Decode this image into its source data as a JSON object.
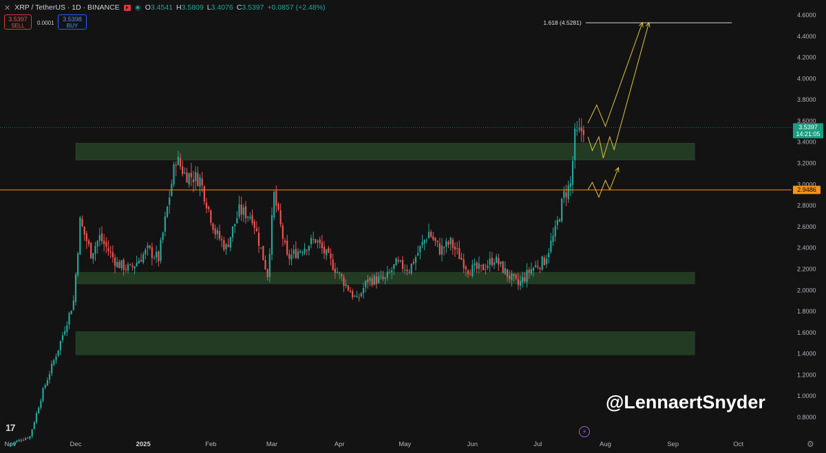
{
  "header": {
    "symbol": "XRP / TetherUS · 1D · BINANCE",
    "o_label": "O",
    "o_value": "3.4541",
    "h_label": "H",
    "h_value": "3.5809",
    "l_label": "L",
    "l_value": "3.4076",
    "c_label": "C",
    "c_value": "3.5397",
    "change": "+0.0857 (+2.48%)"
  },
  "trade": {
    "sell_price": "3.5397",
    "sell_label": "SELL",
    "spread": "0.0001",
    "buy_price": "3.5398",
    "buy_label": "BUY"
  },
  "watermark": "@LennaertSnyder",
  "colors": {
    "up": "#26a69a",
    "down": "#ef5350",
    "zone": "#233b23",
    "orange_line": "#f7931a",
    "projection": "#e4c441",
    "fib_line": "#d9d9d9",
    "price_badge": "#1a9c80"
  },
  "chart_data": {
    "type": "candlestick",
    "symbol": "XRP / TetherUS",
    "timeframe": "1D",
    "y_axis": {
      "ticks": [
        "4.6000",
        "4.4000",
        "4.2000",
        "4.0000",
        "3.8000",
        "3.6000",
        "3.4000",
        "3.2000",
        "3.0000",
        "2.8000",
        "2.6000",
        "2.4000",
        "2.2000",
        "2.0000",
        "1.8000",
        "1.6000",
        "1.4000",
        "1.2000",
        "1.0000",
        "0.8000"
      ],
      "range": [
        0.7,
        4.7
      ]
    },
    "x_axis": {
      "labels": [
        "Nov",
        "Dec",
        "2025",
        "Feb",
        "Mar",
        "Apr",
        "May",
        "Jun",
        "Jul",
        "Aug",
        "Sep",
        "Oct"
      ],
      "label_dates": [
        "2024-11-01",
        "2024-12-01",
        "2025-01-01",
        "2025-02-01",
        "2025-03-01",
        "2025-04-01",
        "2025-05-01",
        "2025-06-01",
        "2025-07-01",
        "2025-08-01",
        "2025-09-01",
        "2025-10-01"
      ]
    },
    "current_price": {
      "value": 3.5397,
      "label": "3.5397",
      "countdown": "14:21:05"
    },
    "horizontal_level": {
      "value": 2.9486,
      "label": "2.9486"
    },
    "fib_level": {
      "value": 4.5281,
      "label": "1.618 (4.5281)"
    },
    "zones": [
      {
        "low": 3.23,
        "high": 3.39,
        "from": "2024-12-01",
        "to": "2025-09-11"
      },
      {
        "low": 2.06,
        "high": 2.17,
        "from": "2024-12-01",
        "to": "2025-09-11"
      },
      {
        "low": 1.39,
        "high": 1.61,
        "from": "2024-12-01",
        "to": "2025-09-11"
      }
    ],
    "anchors": [
      {
        "date": "2024-11-01",
        "price": 0.55
      },
      {
        "date": "2024-11-10",
        "price": 0.62
      },
      {
        "date": "2024-11-16",
        "price": 1.05
      },
      {
        "date": "2024-11-23",
        "price": 1.45
      },
      {
        "date": "2024-11-30",
        "price": 1.9
      },
      {
        "date": "2024-12-03",
        "price": 2.65
      },
      {
        "date": "2024-12-08",
        "price": 2.35
      },
      {
        "date": "2024-12-12",
        "price": 2.5
      },
      {
        "date": "2024-12-20",
        "price": 2.25
      },
      {
        "date": "2024-12-26",
        "price": 2.2
      },
      {
        "date": "2025-01-03",
        "price": 2.38
      },
      {
        "date": "2025-01-08",
        "price": 2.3
      },
      {
        "date": "2025-01-16",
        "price": 3.25
      },
      {
        "date": "2025-01-20",
        "price": 3.1
      },
      {
        "date": "2025-01-27",
        "price": 3.05
      },
      {
        "date": "2025-02-03",
        "price": 2.55
      },
      {
        "date": "2025-02-08",
        "price": 2.4
      },
      {
        "date": "2025-02-14",
        "price": 2.75
      },
      {
        "date": "2025-02-20",
        "price": 2.7
      },
      {
        "date": "2025-02-27",
        "price": 2.15
      },
      {
        "date": "2025-03-02",
        "price": 2.9
      },
      {
        "date": "2025-03-08",
        "price": 2.3
      },
      {
        "date": "2025-03-15",
        "price": 2.4
      },
      {
        "date": "2025-03-21",
        "price": 2.48
      },
      {
        "date": "2025-03-27",
        "price": 2.3
      },
      {
        "date": "2025-04-03",
        "price": 2.08
      },
      {
        "date": "2025-04-09",
        "price": 1.9
      },
      {
        "date": "2025-04-14",
        "price": 2.1
      },
      {
        "date": "2025-04-22",
        "price": 2.1
      },
      {
        "date": "2025-04-27",
        "price": 2.25
      },
      {
        "date": "2025-05-03",
        "price": 2.2
      },
      {
        "date": "2025-05-12",
        "price": 2.55
      },
      {
        "date": "2025-05-17",
        "price": 2.38
      },
      {
        "date": "2025-05-22",
        "price": 2.45
      },
      {
        "date": "2025-05-30",
        "price": 2.2
      },
      {
        "date": "2025-06-05",
        "price": 2.2
      },
      {
        "date": "2025-06-11",
        "price": 2.3
      },
      {
        "date": "2025-06-17",
        "price": 2.15
      },
      {
        "date": "2025-06-22",
        "price": 2.05
      },
      {
        "date": "2025-06-28",
        "price": 2.2
      },
      {
        "date": "2025-07-04",
        "price": 2.28
      },
      {
        "date": "2025-07-09",
        "price": 2.55
      },
      {
        "date": "2025-07-13",
        "price": 2.9
      },
      {
        "date": "2025-07-16",
        "price": 3.0
      },
      {
        "date": "2025-07-18",
        "price": 3.45
      },
      {
        "date": "2025-07-20",
        "price": 3.48
      },
      {
        "date": "2025-07-22",
        "price": 3.54
      }
    ],
    "projections": [
      {
        "points": [
          [
            "2025-07-24",
            3.58
          ],
          [
            "2025-07-28",
            3.75
          ],
          [
            "2025-08-01",
            3.55
          ],
          [
            "2025-08-18",
            4.53
          ]
        ],
        "arrow": true
      },
      {
        "points": [
          [
            "2025-07-24",
            3.45
          ],
          [
            "2025-07-26",
            3.32
          ],
          [
            "2025-07-29",
            3.45
          ],
          [
            "2025-07-31",
            3.25
          ],
          [
            "2025-08-03",
            3.45
          ],
          [
            "2025-08-05",
            3.33
          ],
          [
            "2025-08-21",
            4.53
          ]
        ],
        "arrow": true
      },
      {
        "points": [
          [
            "2025-07-24",
            2.95
          ],
          [
            "2025-07-26",
            3.02
          ],
          [
            "2025-07-29",
            2.88
          ],
          [
            "2025-08-01",
            3.04
          ],
          [
            "2025-08-03",
            2.95
          ],
          [
            "2025-08-07",
            3.16
          ]
        ],
        "arrow": true
      }
    ]
  }
}
